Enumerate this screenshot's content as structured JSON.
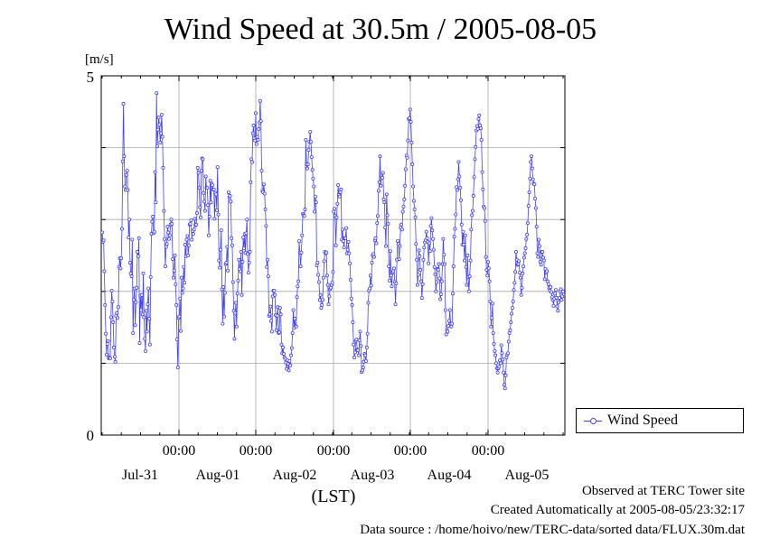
{
  "chart_data": {
    "type": "line",
    "title": "Wind Speed at 30.5m / 2005-08-05",
    "ylabel": "[m/s]",
    "xlabel": "(LST)",
    "ylim": [
      0,
      5
    ],
    "y_tick_labels": [
      "0",
      "5"
    ],
    "x_time_labels": [
      "00:00",
      "00:00",
      "00:00",
      "00:00",
      "00:00"
    ],
    "x_date_labels": [
      "Jul-31",
      "Aug-01",
      "Aug-02",
      "Aug-03",
      "Aug-04",
      "Aug-05"
    ],
    "grid": true,
    "legend_position": "right",
    "series": [
      {
        "name": "Wind Speed",
        "color": "#4040ff",
        "values": [
          2.82,
          2.69,
          2.71,
          2.28,
          1.81,
          1.41,
          1.12,
          1.27,
          1.31,
          1.07,
          1.08,
          1.07,
          1.64,
          2.01,
          1.86,
          1.57,
          1.22,
          1.09,
          1.02,
          1.66,
          1.7,
          1.63,
          1.78,
          2.34,
          2.46,
          2.32,
          2.46,
          2.87,
          3.81,
          4.61,
          3.88,
          3.46,
          3.41,
          3.62,
          3.68,
          3.41,
          2.75,
          3.0,
          2.4,
          2.25,
          2.21,
          2.72,
          1.42,
          1.88,
          2.04,
          1.53,
          1.85,
          2.05,
          2.55,
          2.49,
          2.74,
          1.28,
          1.94,
          1.74,
          1.95,
          1.68,
          2.25,
          1.64,
          1.34,
          1.17,
          1.73,
          1.44,
          1.82,
          2.04,
          1.62,
          1.26,
          2.2,
          2.8,
          2.97,
          3.04,
          2.81,
          2.83,
          3.66,
          3.24,
          4.76,
          4.02,
          4.25,
          4.42,
          4.32,
          4.07,
          4.2,
          4.46,
          4.15,
          3.72,
          3.12,
          2.73,
          2.35,
          2.62,
          2.66,
          2.9,
          2.82,
          2.73,
          2.78,
          2.93,
          3.0,
          2.94,
          2.45,
          2.19,
          2.29,
          2.5,
          2.1,
          1.81,
          1.33,
          0.94,
          1.63,
          1.65,
          1.9,
          1.45,
          2.19,
          1.98,
          2.04,
          2.34,
          2.12,
          2.65,
          2.49,
          2.72,
          2.77,
          2.5,
          2.64,
          2.93,
          2.94,
          2.99,
          2.72,
          2.84,
          2.8,
          2.86,
          3.01,
          2.92,
          2.93,
          3.09,
          3.72,
          3.65,
          3.44,
          3.17,
          3.03,
          3.68,
          3.85,
          3.84,
          3.37,
          3.25,
          3.12,
          3.6,
          3.44,
          3.44,
          3.2,
          2.78,
          3.04,
          3.54,
          3.24,
          3.5,
          3.48,
          3.42,
          3.42,
          3.01,
          3.37,
          3.35,
          3.13,
          3.73,
          3.07,
          2.43,
          2.33,
          2.58,
          2.85,
          2.03,
          1.55,
          2.06,
          1.65,
          1.98,
          2.38,
          2.4,
          2.62,
          2.29,
          3.38,
          3.31,
          3.33,
          3.25,
          2.74,
          2.64,
          2.13,
          1.73,
          1.34,
          1.7,
          1.84,
          1.51,
          1.97,
          2.15,
          2.44,
          2.31,
          2.28,
          2.55,
          1.95,
          2.41,
          2.75,
          2.6,
          2.8,
          2.54,
          2.81,
          3.0,
          2.52,
          2.26,
          2.4,
          2.55,
          3.52,
          3.84,
          3.8,
          4.2,
          4.31,
          4.13,
          4.1,
          4.48,
          4.05,
          4.15,
          4.11,
          4.26,
          4.35,
          4.65,
          4.37,
          3.68,
          3.4,
          3.38,
          3.49,
          3.36,
          3.14,
          2.91,
          2.34,
          2.44,
          2.21,
          1.66,
          1.68,
          1.79,
          1.59,
          1.44,
          1.93,
          2.01,
          2.01,
          1.95,
          1.67,
          1.46,
          1.66,
          1.78,
          1.42,
          1.43,
          1.77,
          1.68,
          1.26,
          1.14,
          1.22,
          1.13,
          1.08,
          1.06,
          1.01,
          0.92,
          1.04,
          0.99,
          0.9,
          1.03,
          0.97,
          1.11,
          1.21,
          1.42,
          1.74,
          1.49,
          1.62,
          1.52,
          1.51,
          1.92,
          2.07,
          2.14,
          2.7,
          2.54,
          2.35,
          2.54,
          2.78,
          3.08,
          3.06,
          3.05,
          3.14,
          4.11,
          3.77,
          3.71,
          3.77,
          3.97,
          4.08,
          4.22,
          4.08,
          3.87,
          3.69,
          3.57,
          3.46,
          3.11,
          3.32,
          3.24,
          2.36,
          2.4,
          2.23,
          2.13,
          1.88,
          1.95,
          1.77,
          1.81,
          1.88,
          2.19,
          2.42,
          2.55,
          2.53,
          2.54,
          2.22,
          2.09,
          1.82,
          1.93,
          2.03,
          2.05,
          2.09,
          2.12,
          2.27,
          3.11,
          3.15,
          3.05,
          2.64,
          3.03,
          3.22,
          3.48,
          3.34,
          3.32,
          3.38,
          3.42,
          2.72,
          2.86,
          2.7,
          2.61,
          2.74,
          2.74,
          2.88,
          2.53,
          2.58,
          2.69,
          2.53,
          2.39,
          2.16,
          1.9,
          1.81,
          1.57,
          1.26,
          1.08,
          1.15,
          1.31,
          1.33,
          1.19,
          1.18,
          1.11,
          1.32,
          1.44,
          1.24,
          0.88,
          0.9,
          0.94,
          1.02,
          1.13,
          1.11,
          1.03,
          1.22,
          1.41,
          1.84,
          2.01,
          2.04,
          2.22,
          2.08,
          2.4,
          2.5,
          2.52,
          2.48,
          2.71,
          2.74,
          2.67,
          2.95,
          3.05,
          3.4,
          3.52,
          3.88,
          3.47,
          3.6,
          3.58,
          3.65,
          3.28,
          3.24,
          2.89,
          2.63,
          3.35,
          3.06,
          2.94,
          2.35,
          2.15,
          2.56,
          2.22,
          2.07,
          2.26,
          2.28,
          2.32,
          2.13,
          1.82,
          2.11,
          2.44,
          2.7,
          2.66,
          2.45,
          2.63,
          2.89,
          2.93,
          2.86,
          3.11,
          3.18,
          3.28,
          3.47,
          3.7,
          3.89,
          3.86,
          4.1,
          4.4,
          4.41,
          4.53,
          4.36,
          4.07,
          3.77,
          3.46,
          3.26,
          3.14,
          3.03,
          2.66,
          2.44,
          2.09,
          2.23,
          2.57,
          2.49,
          2.3,
          2.14,
          1.91,
          2.1,
          2.44,
          2.61,
          2.68,
          2.71,
          2.83,
          2.74,
          2.69,
          2.39,
          2.67,
          2.56,
          2.91,
          3.02,
          2.85,
          2.73,
          2.58,
          2.34,
          2.24,
          2.0,
          2.13,
          2.31,
          2.3,
          2.38,
          2.18,
          1.89,
          1.96,
          2.14,
          2.38,
          2.73,
          2.51,
          2.38,
          1.74,
          1.4,
          1.46,
          1.44,
          1.52,
          1.59,
          1.74,
          1.55,
          1.51,
          1.55,
          1.97,
          2.35,
          2.76,
          2.87,
          3.07,
          3.45,
          3.41,
          3.56,
          3.8,
          3.6,
          3.44,
          3.27,
          2.93,
          2.65,
          2.83,
          2.65,
          2.43,
          2.78,
          2.34,
          2.09,
          2.5,
          2.2,
          2.0,
          2.21,
          2.43,
          2.86,
          3.06,
          3.12,
          3.33,
          3.59,
          3.84,
          4.01,
          4.24,
          4.3,
          4.26,
          4.4,
          4.45,
          4.31,
          4.27,
          4.11,
          3.66,
          3.42,
          3.18,
          3.16,
          2.98,
          2.48,
          2.3,
          2.22,
          2.41,
          2.32,
          2.14,
          1.86,
          1.51,
          1.63,
          1.83,
          1.42,
          1.27,
          1.17,
          1.11,
          1.0,
          0.93,
          0.87,
          0.93,
          0.95,
          1.04,
          1.0,
          1.25,
          1.14,
          1.05,
          0.87,
          0.7,
          0.65,
          0.83,
          1.08,
          1.12,
          1.14,
          1.3,
          1.42,
          1.46,
          1.57,
          1.69,
          1.77,
          1.86,
          2.02,
          2.12,
          2.27,
          2.55,
          2.44,
          2.37,
          2.38,
          2.42,
          2.26,
          2.19,
          1.95,
          2.05,
          2.25,
          2.35,
          2.47,
          2.53,
          2.6,
          2.73,
          2.79,
          2.95,
          3.19,
          3.38,
          3.57,
          3.8,
          3.88,
          3.71,
          3.56,
          3.5,
          3.49,
          3.29,
          3.16,
          2.9,
          2.53,
          2.48,
          2.72,
          2.63,
          2.41,
          2.37,
          2.55,
          2.55,
          2.47,
          2.43,
          2.17,
          2.31,
          2.26,
          2.28,
          2.14,
          2.1,
          2.05,
          2.01,
          2.06,
          1.99,
          1.92,
          1.88,
          1.8,
          1.9,
          1.97,
          2.02,
          1.91,
          1.79,
          1.73,
          1.85,
          1.91,
          2.0,
          2.03,
          1.88,
          1.93,
          2.0
        ]
      }
    ]
  },
  "footer": {
    "line1": "Observed at TERC Tower site",
    "line2": "Created Automatically at 2005-08-05/23:32:17",
    "line3": "Data source : /home/hoivo/new/TERC-data/sorted  data/FLUX.30m.dat"
  }
}
